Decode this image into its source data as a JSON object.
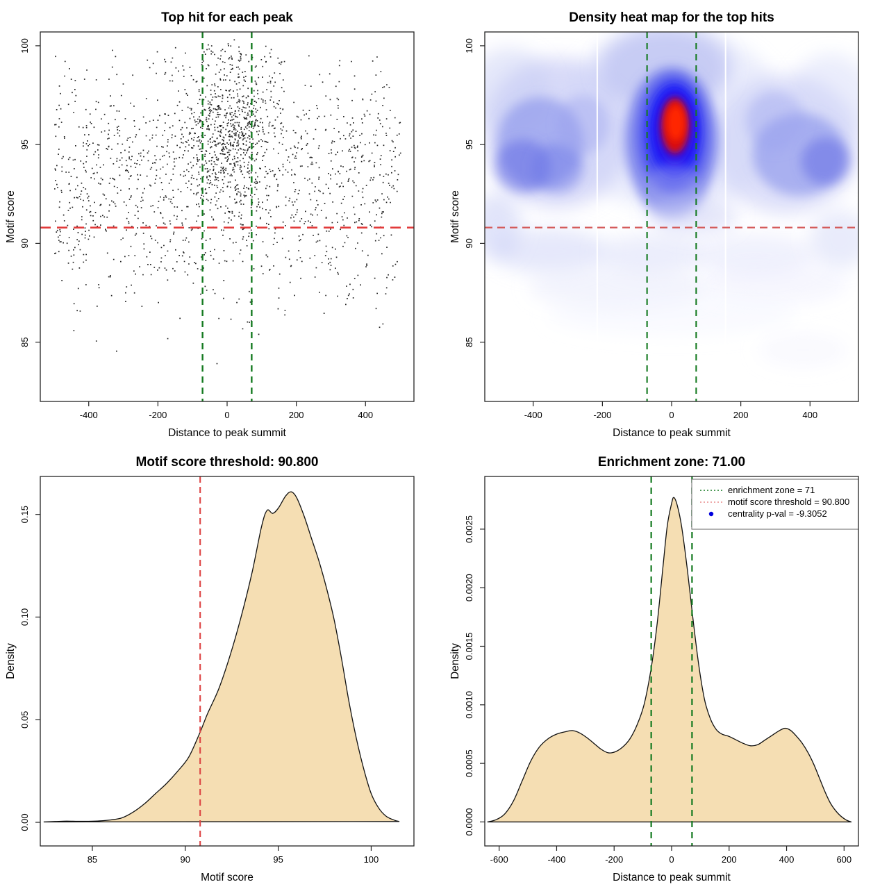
{
  "figure": {
    "kind": "motif centrality diagnostic plots",
    "panels": 4
  },
  "chart_data": [
    {
      "id": "top-hit-scatter",
      "type": "scatter",
      "title": "Top hit for each peak",
      "xlabel": "Distance to peak summit",
      "ylabel": "Motif score",
      "xlim": [
        -540,
        540
      ],
      "ylim": [
        82.0,
        100.7
      ],
      "xticks": [
        -400,
        -200,
        0,
        200,
        400
      ],
      "yticks": [
        85,
        90,
        95,
        100
      ],
      "point_color": "#111111",
      "seed": 1337,
      "vlines": {
        "x": [
          -71,
          71
        ],
        "color": "#147a20",
        "width": 2.4,
        "dash": "9,7"
      },
      "hline": {
        "y": 90.8,
        "color": "#e23b3b",
        "width": 2.6,
        "dash": "15,9"
      },
      "clusters": [
        {
          "n": 950,
          "x": {
            "dist": "uniform",
            "min": -500,
            "max": 500
          },
          "y": {
            "dist": "normal",
            "mean": 94.6,
            "sd": 2.0,
            "min": 89.5,
            "max": 100.2
          }
        },
        {
          "n": 620,
          "x": {
            "dist": "normal",
            "mean": 8,
            "sd": 62,
            "min": -170,
            "max": 185
          },
          "y": {
            "dist": "normal",
            "mean": 95.4,
            "sd": 1.95,
            "min": 88.5,
            "max": 100.3
          }
        },
        {
          "n": 310,
          "x": {
            "dist": "uniform",
            "min": -500,
            "max": 500
          },
          "y": {
            "dist": "normal",
            "mean": 91.0,
            "sd": 1.35,
            "min": 88.2,
            "max": 93.5
          }
        },
        {
          "n": 130,
          "x": {
            "dist": "uniform",
            "min": -495,
            "max": 495
          },
          "y": {
            "dist": "normal",
            "mean": 88.5,
            "sd": 1.15,
            "min": 85.8,
            "max": 90.3
          }
        },
        {
          "n": 26,
          "x": {
            "dist": "uniform",
            "min": -460,
            "max": 480
          },
          "y": {
            "dist": "normal",
            "mean": 86.2,
            "sd": 1.0,
            "min": 83.6,
            "max": 87.6
          }
        },
        {
          "n": 70,
          "x": {
            "dist": "normal",
            "mean": -15,
            "sd": 90,
            "min": -260,
            "max": 230
          },
          "y": {
            "dist": "normal",
            "mean": 99.3,
            "sd": 0.55,
            "min": 98.2,
            "max": 100.4
          }
        }
      ]
    },
    {
      "id": "density-heatmap",
      "type": "heatmap",
      "title": "Density heat map for the top hits",
      "xlabel": "Distance to peak summit",
      "ylabel": "Motif score",
      "xlim": [
        -540,
        540
      ],
      "ylim": [
        82.0,
        100.7
      ],
      "xticks": [
        -400,
        -200,
        0,
        200,
        400
      ],
      "yticks": [
        85,
        90,
        95,
        100
      ],
      "hotspot": {
        "x": 10,
        "y": 95.9,
        "note": "maximum density (red core)"
      },
      "vlines": {
        "x": [
          -71,
          71
        ],
        "color": "#147a20",
        "width": 2.1,
        "dash": "9,7"
      },
      "hline": {
        "y": 90.8,
        "color": "#d45a5a",
        "width": 2.3,
        "dash": "11,7"
      },
      "white_lines": [
        -215,
        156
      ],
      "blobs": [
        [
          -330,
          95.6,
          215,
          3.8,
          "#b9bef3",
          0.55,
          "big"
        ],
        [
          330,
          95.0,
          215,
          3.5,
          "#bfc4f4",
          0.52,
          "big"
        ],
        [
          0,
          96.3,
          330,
          4.6,
          "#ced2f7",
          0.4,
          "big"
        ],
        [
          -20,
          98.9,
          190,
          2.1,
          "#a9b0ef",
          0.55,
          "big"
        ],
        [
          -470,
          97.8,
          120,
          2.1,
          "#c6cbf5",
          0.45,
          "big"
        ],
        [
          460,
          97.3,
          120,
          2.3,
          "#d0d4f8",
          0.42,
          "big"
        ],
        [
          -380,
          95.1,
          125,
          2.3,
          "#7e88e9",
          0.55,
          "med"
        ],
        [
          -430,
          93.9,
          80,
          1.35,
          "#5c66e4",
          0.5,
          "med"
        ],
        [
          -330,
          93.8,
          75,
          1.25,
          "#6b75e6",
          0.45,
          "med"
        ],
        [
          -255,
          96.0,
          75,
          1.5,
          "#9aa1ee",
          0.4,
          "med"
        ],
        [
          370,
          94.5,
          135,
          2.1,
          "#7e88e9",
          0.55,
          "med"
        ],
        [
          445,
          94.15,
          70,
          1.2,
          "#5c66e4",
          0.5,
          "med"
        ],
        [
          300,
          96.2,
          85,
          1.5,
          "#9aa1ee",
          0.42,
          "med"
        ],
        [
          0,
          95.2,
          135,
          3.7,
          "#6d75ea",
          0.8,
          "med"
        ],
        [
          5,
          95.5,
          100,
          3.0,
          "#3d42f1",
          0.85,
          "med"
        ],
        [
          8,
          95.7,
          75,
          2.35,
          "#1f1df6",
          0.9,
          "sm"
        ],
        [
          10,
          95.8,
          55,
          1.8,
          "#2a0ce8",
          0.95,
          "sm"
        ],
        [
          10,
          95.95,
          40,
          1.4,
          "#d91111",
          1,
          "sm"
        ],
        [
          12,
          96.1,
          26,
          0.9,
          "#ff2500",
          1,
          "sm"
        ],
        [
          5,
          92.6,
          90,
          1.4,
          "#98a0ee",
          0.45,
          "med"
        ],
        [
          -350,
          89.6,
          165,
          1.15,
          "#cdd2f7",
          0.5,
          "big"
        ],
        [
          -60,
          89.45,
          155,
          1.0,
          "#d5d9f9",
          0.45,
          "big"
        ],
        [
          240,
          89.4,
          175,
          1.05,
          "#dbdefa",
          0.42,
          "big"
        ],
        [
          485,
          90.2,
          85,
          1.5,
          "#ced3f7",
          0.45,
          "big"
        ],
        [
          -505,
          90.9,
          70,
          1.7,
          "#c4c9f5",
          0.5,
          "big"
        ],
        [
          60,
          91.4,
          130,
          0.95,
          "#cbd0f6",
          0.5,
          "big"
        ],
        [
          -150,
          87.8,
          260,
          1.15,
          "#e7e9fc",
          0.5,
          "big"
        ],
        [
          300,
          88.0,
          210,
          1.05,
          "#eaecfd",
          0.45,
          "big"
        ],
        [
          0,
          86.4,
          360,
          1.05,
          "#f1f2fe",
          0.42,
          "big"
        ],
        [
          380,
          84.6,
          130,
          0.85,
          "#eff1fd",
          0.4,
          "big"
        ]
      ]
    },
    {
      "id": "motif-score-density",
      "type": "density",
      "title": "Motif score threshold: 90.800",
      "xlabel": "Motif score",
      "ylabel": "Density",
      "xlim": [
        82.2,
        102.3
      ],
      "ylim": [
        -0.0115,
        0.1685
      ],
      "xticks": [
        85,
        90,
        95,
        100
      ],
      "yticks": [
        0,
        0.05,
        0.1,
        0.15
      ],
      "ytick_labels": [
        "0.00",
        "0.05",
        "0.10",
        "0.15"
      ],
      "fill": "#f5deb3",
      "line_color": "#111111",
      "vlines": {
        "x": [
          90.8
        ],
        "color": "#dd4444",
        "width": 2.1,
        "dash": "9,6"
      },
      "curve": [
        [
          82.4,
          0.0002
        ],
        [
          83.0,
          0.0004
        ],
        [
          83.6,
          0.0006
        ],
        [
          84.2,
          0.0005
        ],
        [
          84.8,
          0.0005
        ],
        [
          85.4,
          0.0007
        ],
        [
          86.0,
          0.0012
        ],
        [
          86.6,
          0.0022
        ],
        [
          87.2,
          0.005
        ],
        [
          87.8,
          0.009
        ],
        [
          88.4,
          0.014
        ],
        [
          89.0,
          0.019
        ],
        [
          89.6,
          0.025
        ],
        [
          90.2,
          0.032
        ],
        [
          90.8,
          0.044
        ],
        [
          91.2,
          0.053
        ],
        [
          91.8,
          0.065
        ],
        [
          92.4,
          0.081
        ],
        [
          93.0,
          0.1
        ],
        [
          93.6,
          0.122
        ],
        [
          94.1,
          0.144
        ],
        [
          94.4,
          0.152
        ],
        [
          94.7,
          0.1505
        ],
        [
          95.0,
          0.153
        ],
        [
          95.4,
          0.159
        ],
        [
          95.7,
          0.161
        ],
        [
          96.0,
          0.158
        ],
        [
          96.4,
          0.149
        ],
        [
          96.8,
          0.138
        ],
        [
          97.2,
          0.127
        ],
        [
          97.6,
          0.114
        ],
        [
          98.0,
          0.099
        ],
        [
          98.4,
          0.08
        ],
        [
          98.8,
          0.059
        ],
        [
          99.2,
          0.041
        ],
        [
          99.6,
          0.026
        ],
        [
          100.0,
          0.014
        ],
        [
          100.4,
          0.007
        ],
        [
          100.8,
          0.003
        ],
        [
          101.2,
          0.0012
        ],
        [
          101.5,
          0.0004
        ]
      ]
    },
    {
      "id": "summit-distance-density",
      "type": "density",
      "title": "Enrichment zone: 71.00",
      "xlabel": "Distance to peak summit",
      "ylabel": "Density",
      "xlim": [
        -650,
        650
      ],
      "ylim": [
        -0.000205,
        0.00295
      ],
      "xticks": [
        -600,
        -400,
        -200,
        0,
        200,
        400,
        600
      ],
      "yticks": [
        0,
        0.0005,
        0.001,
        0.0015,
        0.002,
        0.0025
      ],
      "ytick_labels": [
        "0.0000",
        "0.0005",
        "0.0010",
        "0.0015",
        "0.0020",
        "0.0025"
      ],
      "fill": "#f5deb3",
      "line_color": "#111111",
      "vlines": {
        "x": [
          -71,
          71
        ],
        "color": "#147a20",
        "width": 2.2,
        "dash": "9,7"
      },
      "legend": {
        "items": [
          {
            "type": "dotted",
            "color": "#147a20",
            "label": "enrichment zone = 71"
          },
          {
            "type": "dotted",
            "color": "#e98b8b",
            "label": "motif score threshold = 90.800"
          },
          {
            "type": "point",
            "color": "#0000dd",
            "label": "centrality p-val = -9.3052"
          }
        ]
      },
      "curve": [
        [
          -640,
          0.0
        ],
        [
          -610,
          2e-05
        ],
        [
          -580,
          7e-05
        ],
        [
          -550,
          0.00018
        ],
        [
          -520,
          0.00035
        ],
        [
          -490,
          0.00052
        ],
        [
          -460,
          0.00064
        ],
        [
          -430,
          0.00071
        ],
        [
          -400,
          0.00075
        ],
        [
          -370,
          0.00077
        ],
        [
          -345,
          0.00078
        ],
        [
          -320,
          0.00076
        ],
        [
          -295,
          0.00072
        ],
        [
          -270,
          0.00067
        ],
        [
          -245,
          0.00062
        ],
        [
          -220,
          0.00059
        ],
        [
          -195,
          0.0006
        ],
        [
          -170,
          0.00064
        ],
        [
          -145,
          0.00071
        ],
        [
          -120,
          0.00083
        ],
        [
          -95,
          0.00101
        ],
        [
          -70,
          0.00133
        ],
        [
          -50,
          0.0017
        ],
        [
          -30,
          0.00218
        ],
        [
          -15,
          0.00253
        ],
        [
          0,
          0.00272
        ],
        [
          8,
          0.00277
        ],
        [
          20,
          0.0027
        ],
        [
          35,
          0.00252
        ],
        [
          55,
          0.00215
        ],
        [
          75,
          0.00172
        ],
        [
          95,
          0.00133
        ],
        [
          115,
          0.00104
        ],
        [
          135,
          0.00088
        ],
        [
          155,
          0.00079
        ],
        [
          175,
          0.00075
        ],
        [
          200,
          0.00073
        ],
        [
          225,
          0.0007
        ],
        [
          250,
          0.00067
        ],
        [
          275,
          0.00065
        ],
        [
          300,
          0.00066
        ],
        [
          325,
          0.0007
        ],
        [
          350,
          0.00074
        ],
        [
          375,
          0.00078
        ],
        [
          395,
          0.0008
        ],
        [
          415,
          0.00078
        ],
        [
          435,
          0.00073
        ],
        [
          455,
          0.00067
        ],
        [
          475,
          0.00059
        ],
        [
          495,
          0.00049
        ],
        [
          515,
          0.00037
        ],
        [
          535,
          0.00025
        ],
        [
          555,
          0.00015
        ],
        [
          580,
          7e-05
        ],
        [
          605,
          2e-05
        ],
        [
          625,
          0.0
        ]
      ]
    }
  ]
}
